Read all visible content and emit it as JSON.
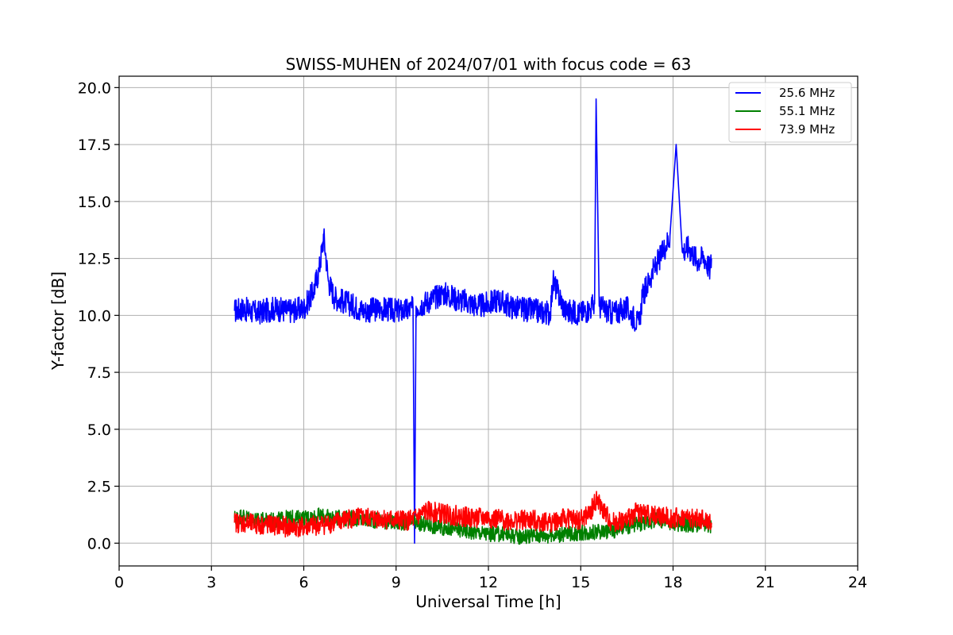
{
  "chart_data": {
    "type": "line",
    "title": "SWISS-MUHEN of 2024/07/01 with focus code = 63",
    "xlabel": "Universal Time [h]",
    "ylabel": "Y-factor [dB]",
    "xlim": [
      0,
      24
    ],
    "ylim": [
      -1.0,
      20.5
    ],
    "xticks": [
      0,
      3,
      6,
      9,
      12,
      15,
      18,
      21,
      24
    ],
    "xtick_labels": [
      "0",
      "3",
      "6",
      "9",
      "12",
      "15",
      "18",
      "21",
      "24"
    ],
    "yticks": [
      0.0,
      2.5,
      5.0,
      7.5,
      10.0,
      12.5,
      15.0,
      17.5,
      20.0
    ],
    "ytick_labels": [
      "0.0",
      "2.5",
      "5.0",
      "7.5",
      "10.0",
      "12.5",
      "15.0",
      "17.5",
      "20.0"
    ],
    "grid": true,
    "legend_position": "top-right",
    "series": [
      {
        "name": "25.6 MHz",
        "color": "#0000ff",
        "x": [
          3.75,
          4.0,
          4.5,
          5.0,
          5.5,
          6.0,
          6.3,
          6.5,
          6.65,
          6.8,
          7.0,
          7.3,
          7.5,
          7.8,
          8.0,
          8.5,
          9.0,
          9.3,
          9.55,
          9.6,
          9.65,
          10.0,
          10.3,
          10.5,
          11.0,
          11.3,
          11.7,
          12.0,
          12.3,
          12.7,
          13.0,
          13.5,
          14.0,
          14.1,
          14.5,
          15.0,
          15.3,
          15.45,
          15.5,
          15.6,
          16.0,
          16.5,
          16.9,
          17.0,
          17.3,
          17.6,
          17.9,
          18.1,
          18.3,
          18.5,
          18.8,
          19.0,
          19.2,
          19.25
        ],
        "y": [
          10.2,
          10.3,
          10.1,
          10.3,
          10.2,
          10.3,
          11.0,
          12.0,
          13.5,
          11.5,
          10.8,
          10.6,
          10.5,
          10.3,
          10.2,
          10.3,
          10.2,
          10.2,
          10.3,
          0.0,
          10.4,
          10.6,
          10.8,
          11.0,
          10.7,
          10.6,
          10.4,
          10.5,
          10.7,
          10.4,
          10.3,
          10.2,
          10.1,
          11.5,
          10.2,
          10.1,
          10.3,
          10.5,
          19.5,
          10.4,
          10.1,
          10.3,
          9.6,
          10.8,
          11.8,
          12.6,
          13.5,
          17.5,
          12.8,
          13.0,
          12.4,
          12.6,
          12.0,
          12.5
        ]
      },
      {
        "name": "55.1 MHz",
        "color": "#008000",
        "x": [
          3.75,
          4.0,
          4.5,
          5.0,
          5.5,
          6.0,
          6.5,
          7.0,
          7.5,
          8.0,
          8.5,
          9.0,
          9.5,
          10.0,
          10.5,
          11.0,
          11.5,
          12.0,
          12.5,
          13.0,
          13.5,
          14.0,
          14.5,
          15.0,
          15.5,
          16.0,
          16.5,
          17.0,
          17.5,
          18.0,
          18.5,
          19.0,
          19.25
        ],
        "y": [
          1.1,
          1.2,
          1.0,
          1.0,
          1.1,
          1.1,
          1.2,
          1.1,
          1.1,
          1.0,
          1.0,
          0.9,
          0.9,
          0.8,
          0.7,
          0.6,
          0.5,
          0.4,
          0.4,
          0.3,
          0.35,
          0.35,
          0.4,
          0.45,
          0.5,
          0.55,
          0.7,
          0.9,
          1.0,
          0.9,
          0.8,
          0.8,
          0.7
        ]
      },
      {
        "name": "73.9 MHz",
        "color": "#ff0000",
        "x": [
          3.75,
          4.0,
          4.5,
          5.0,
          5.5,
          6.0,
          6.5,
          7.0,
          7.5,
          8.0,
          8.5,
          9.0,
          9.5,
          10.0,
          10.5,
          11.0,
          11.5,
          12.0,
          12.5,
          13.0,
          13.5,
          14.0,
          14.5,
          15.0,
          15.3,
          15.5,
          15.7,
          16.0,
          16.5,
          16.8,
          17.0,
          17.5,
          18.0,
          18.5,
          19.0,
          19.25
        ],
        "y": [
          0.9,
          0.9,
          0.8,
          0.8,
          0.7,
          0.7,
          0.8,
          0.9,
          1.1,
          1.1,
          1.1,
          1.0,
          1.0,
          1.4,
          1.3,
          1.2,
          1.1,
          1.1,
          1.0,
          1.0,
          1.0,
          0.9,
          1.1,
          1.0,
          1.3,
          1.9,
          1.5,
          0.9,
          1.0,
          1.4,
          1.3,
          1.2,
          1.1,
          1.1,
          1.0,
          0.9
        ]
      }
    ]
  }
}
